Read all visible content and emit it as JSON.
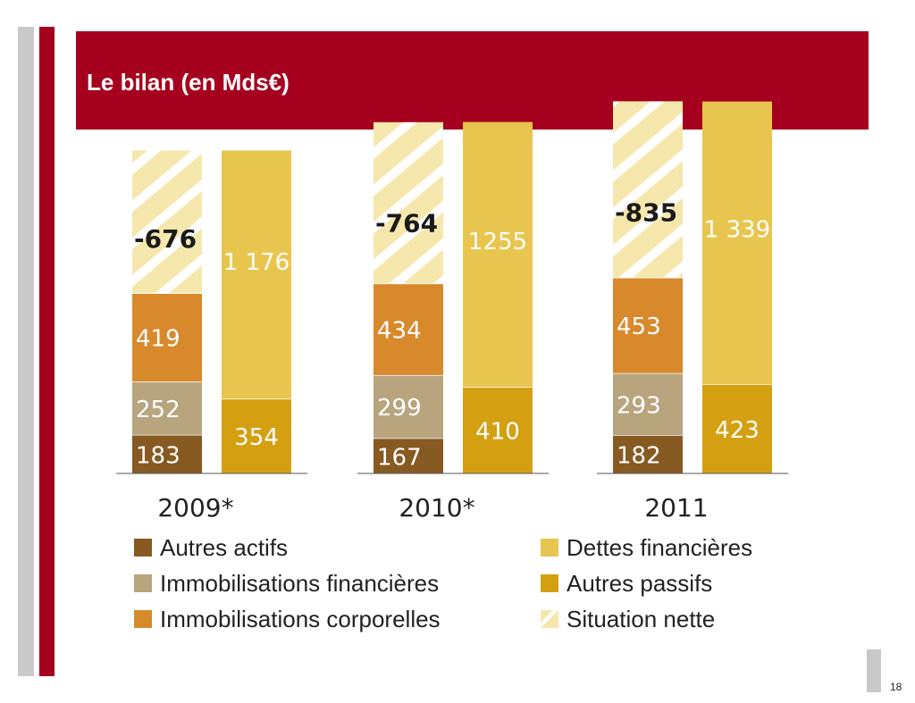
{
  "slide": {
    "title": "Le bilan (en Mds€)",
    "page_number": "18"
  },
  "colors": {
    "autres_actifs": "#875a22",
    "immobilisations_financieres": "#b8a57e",
    "immobilisations_corporelles": "#d8892c",
    "dettes_financieres": "#e8c54e",
    "autres_passifs": "#d4a012",
    "situation_nette": "#f6e7ad",
    "title_bar": "#a5001e"
  },
  "chart_data": {
    "type": "bar",
    "stacked": true,
    "title": "Le bilan (en Mds€)",
    "categories": [
      "2009*",
      "2010*",
      "2011"
    ],
    "assets_series": [
      {
        "name": "Autres actifs",
        "values": [
          183,
          167,
          182
        ]
      },
      {
        "name": "Immobilisations financières",
        "values": [
          252,
          299,
          293
        ]
      },
      {
        "name": "Immobilisations corporelles",
        "values": [
          419,
          434,
          453
        ]
      },
      {
        "name": "Situation nette",
        "values": [
          -676,
          -764,
          -835
        ]
      }
    ],
    "liabilities_series": [
      {
        "name": "Autres passifs",
        "values": [
          354,
          410,
          423
        ]
      },
      {
        "name": "Dettes financières",
        "values": [
          1176,
          1255,
          1339
        ]
      }
    ],
    "value_labels": {
      "autres_actifs": [
        "183",
        "167",
        "182"
      ],
      "immobilisations_financieres": [
        "252",
        "299",
        "293"
      ],
      "immobilisations_corporelles": [
        "419",
        "434",
        "453"
      ],
      "situation_nette": [
        "-676",
        "-764",
        "-835"
      ],
      "autres_passifs": [
        "354",
        "410",
        "423"
      ],
      "dettes_financieres": [
        "1 176",
        "1255",
        "1 339"
      ]
    },
    "legend": {
      "left": [
        "Autres actifs",
        "Immobilisations financières",
        "Immobilisations corporelles"
      ],
      "right": [
        "Dettes financières",
        "Autres passifs",
        "Situation nette"
      ]
    },
    "grid": false,
    "legend_position": "bottom"
  }
}
